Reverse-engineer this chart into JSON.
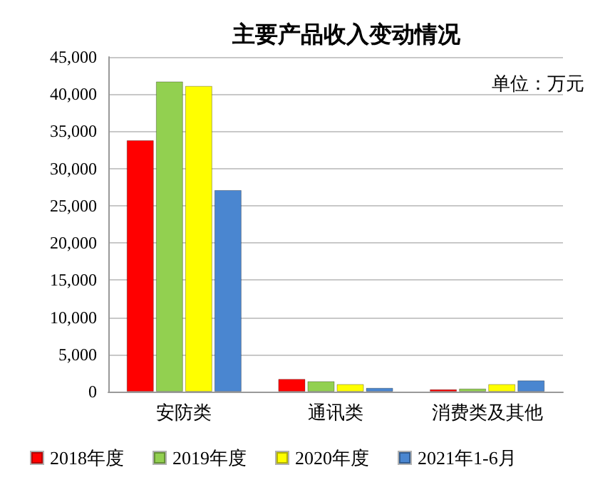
{
  "chart_data": {
    "type": "bar",
    "title": "主要产品收入变动情况",
    "annotations": [
      "单位：万元"
    ],
    "categories": [
      "安防类",
      "通讯类",
      "消费类及其他"
    ],
    "series": [
      {
        "name": "2018年度",
        "color": "#ff0000",
        "values": [
          33800,
          1700,
          300
        ]
      },
      {
        "name": "2019年度",
        "color": "#92d050",
        "values": [
          41700,
          1400,
          400
        ]
      },
      {
        "name": "2020年度",
        "color": "#ffff00",
        "values": [
          41100,
          1000,
          1000
        ]
      },
      {
        "name": "2021年1-6月",
        "color": "#4a86d0",
        "values": [
          27100,
          500,
          1500
        ]
      }
    ],
    "ylim": [
      0,
      45000
    ],
    "yticks": [
      0,
      {
        "value": 5000,
        "label": "5,000"
      },
      {
        "value": 10000,
        "label": "10,000"
      },
      {
        "value": 15000,
        "label": "15,000"
      },
      {
        "value": 20000,
        "label": "20,000"
      },
      {
        "value": 25000,
        "label": "25,000"
      },
      {
        "value": 30000,
        "label": "30,000"
      },
      {
        "value": 35000,
        "label": "35,000"
      },
      {
        "value": 40000,
        "label": "40,000"
      },
      {
        "value": 45000,
        "label": "45,000"
      }
    ],
    "grid": "y",
    "legend": "bottom"
  }
}
